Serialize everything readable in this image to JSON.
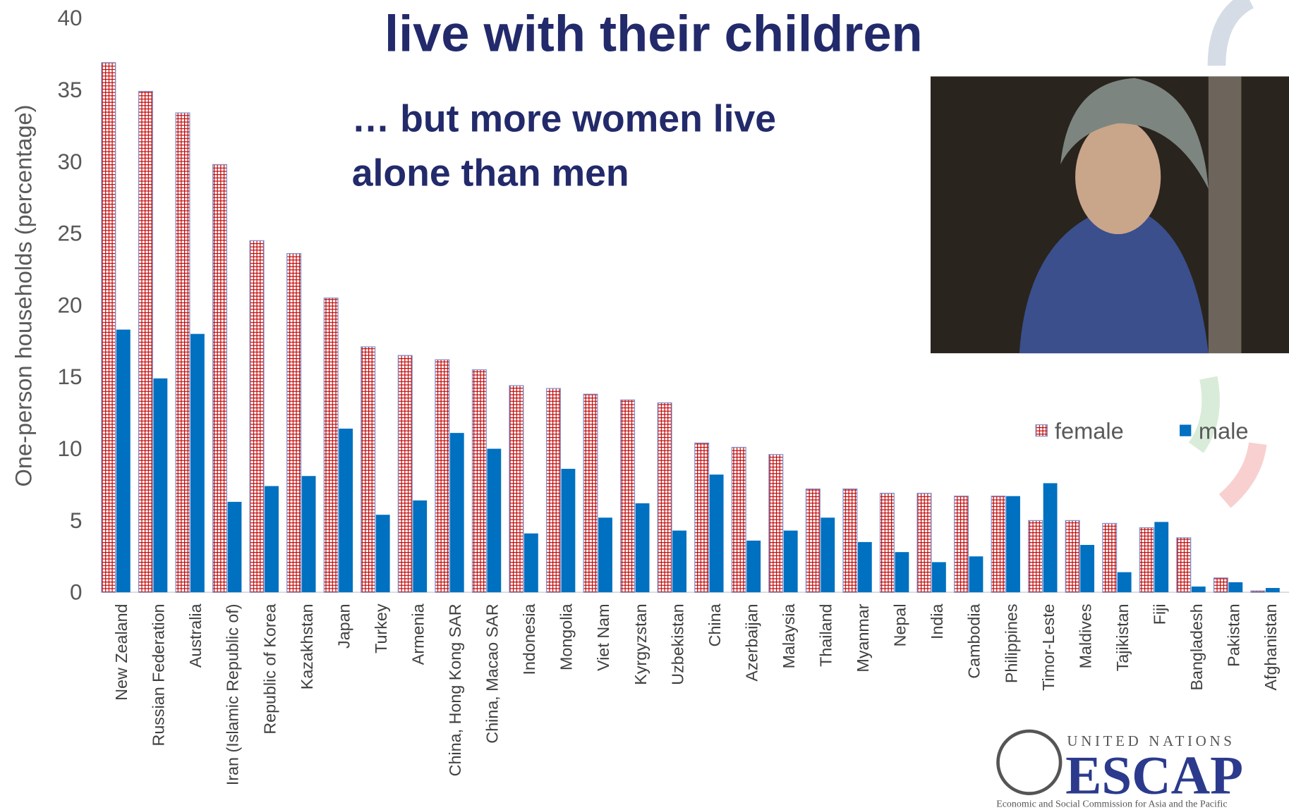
{
  "chart_data": {
    "type": "bar",
    "title": "live with their children",
    "subtitle": [
      "… but more women live",
      "alone than men"
    ],
    "y_label": "One-person households (percentage)",
    "categories": [
      "New Zealand",
      "Russian Federation",
      "Australia",
      "Iran (Islamic Republic of)",
      "Republic of Korea",
      "Kazakhstan",
      "Japan",
      "Turkey",
      "Armenia",
      "China, Hong Kong SAR",
      "China, Macao SAR",
      "Indonesia",
      "Mongolia",
      "Viet Nam",
      "Kyrgyzstan",
      "Uzbekistan",
      "China",
      "Azerbaijan",
      "Malaysia",
      "Thailand",
      "Myanmar",
      "Nepal",
      "India",
      "Cambodia",
      "Philippines",
      "Timor-Leste",
      "Maldives",
      "Tajikistan",
      "Fiji",
      "Bangladesh",
      "Pakistan",
      "Afghanistan"
    ],
    "series": [
      {
        "name": "female",
        "color": "#c00000",
        "values": [
          36.9,
          34.9,
          33.4,
          29.8,
          24.5,
          23.6,
          20.5,
          17.1,
          16.5,
          16.2,
          15.5,
          14.4,
          14.2,
          13.8,
          13.4,
          13.2,
          10.4,
          10.1,
          9.6,
          7.2,
          7.2,
          6.9,
          6.9,
          6.7,
          6.7,
          5.0,
          5.0,
          4.8,
          4.5,
          3.8,
          1.0,
          0.1
        ]
      },
      {
        "name": "male",
        "color": "#0070c0",
        "values": [
          18.3,
          14.9,
          18.0,
          6.3,
          7.4,
          8.1,
          11.4,
          5.4,
          6.4,
          11.1,
          10.0,
          4.1,
          8.6,
          5.2,
          6.2,
          4.3,
          8.2,
          3.6,
          4.3,
          5.2,
          3.5,
          2.8,
          2.1,
          2.5,
          6.7,
          7.6,
          3.3,
          1.4,
          4.9,
          0.4,
          0.7,
          0.3
        ]
      }
    ],
    "ylim": [
      0,
      40
    ],
    "yticks": [
      0,
      5,
      10,
      15,
      20,
      25,
      30,
      35,
      40
    ],
    "grid": false,
    "legend": "right"
  },
  "logo": {
    "top": "UNITED NATIONS",
    "name": "ESCAP",
    "caption": "Economic and Social Commission for Asia and the Pacific"
  }
}
